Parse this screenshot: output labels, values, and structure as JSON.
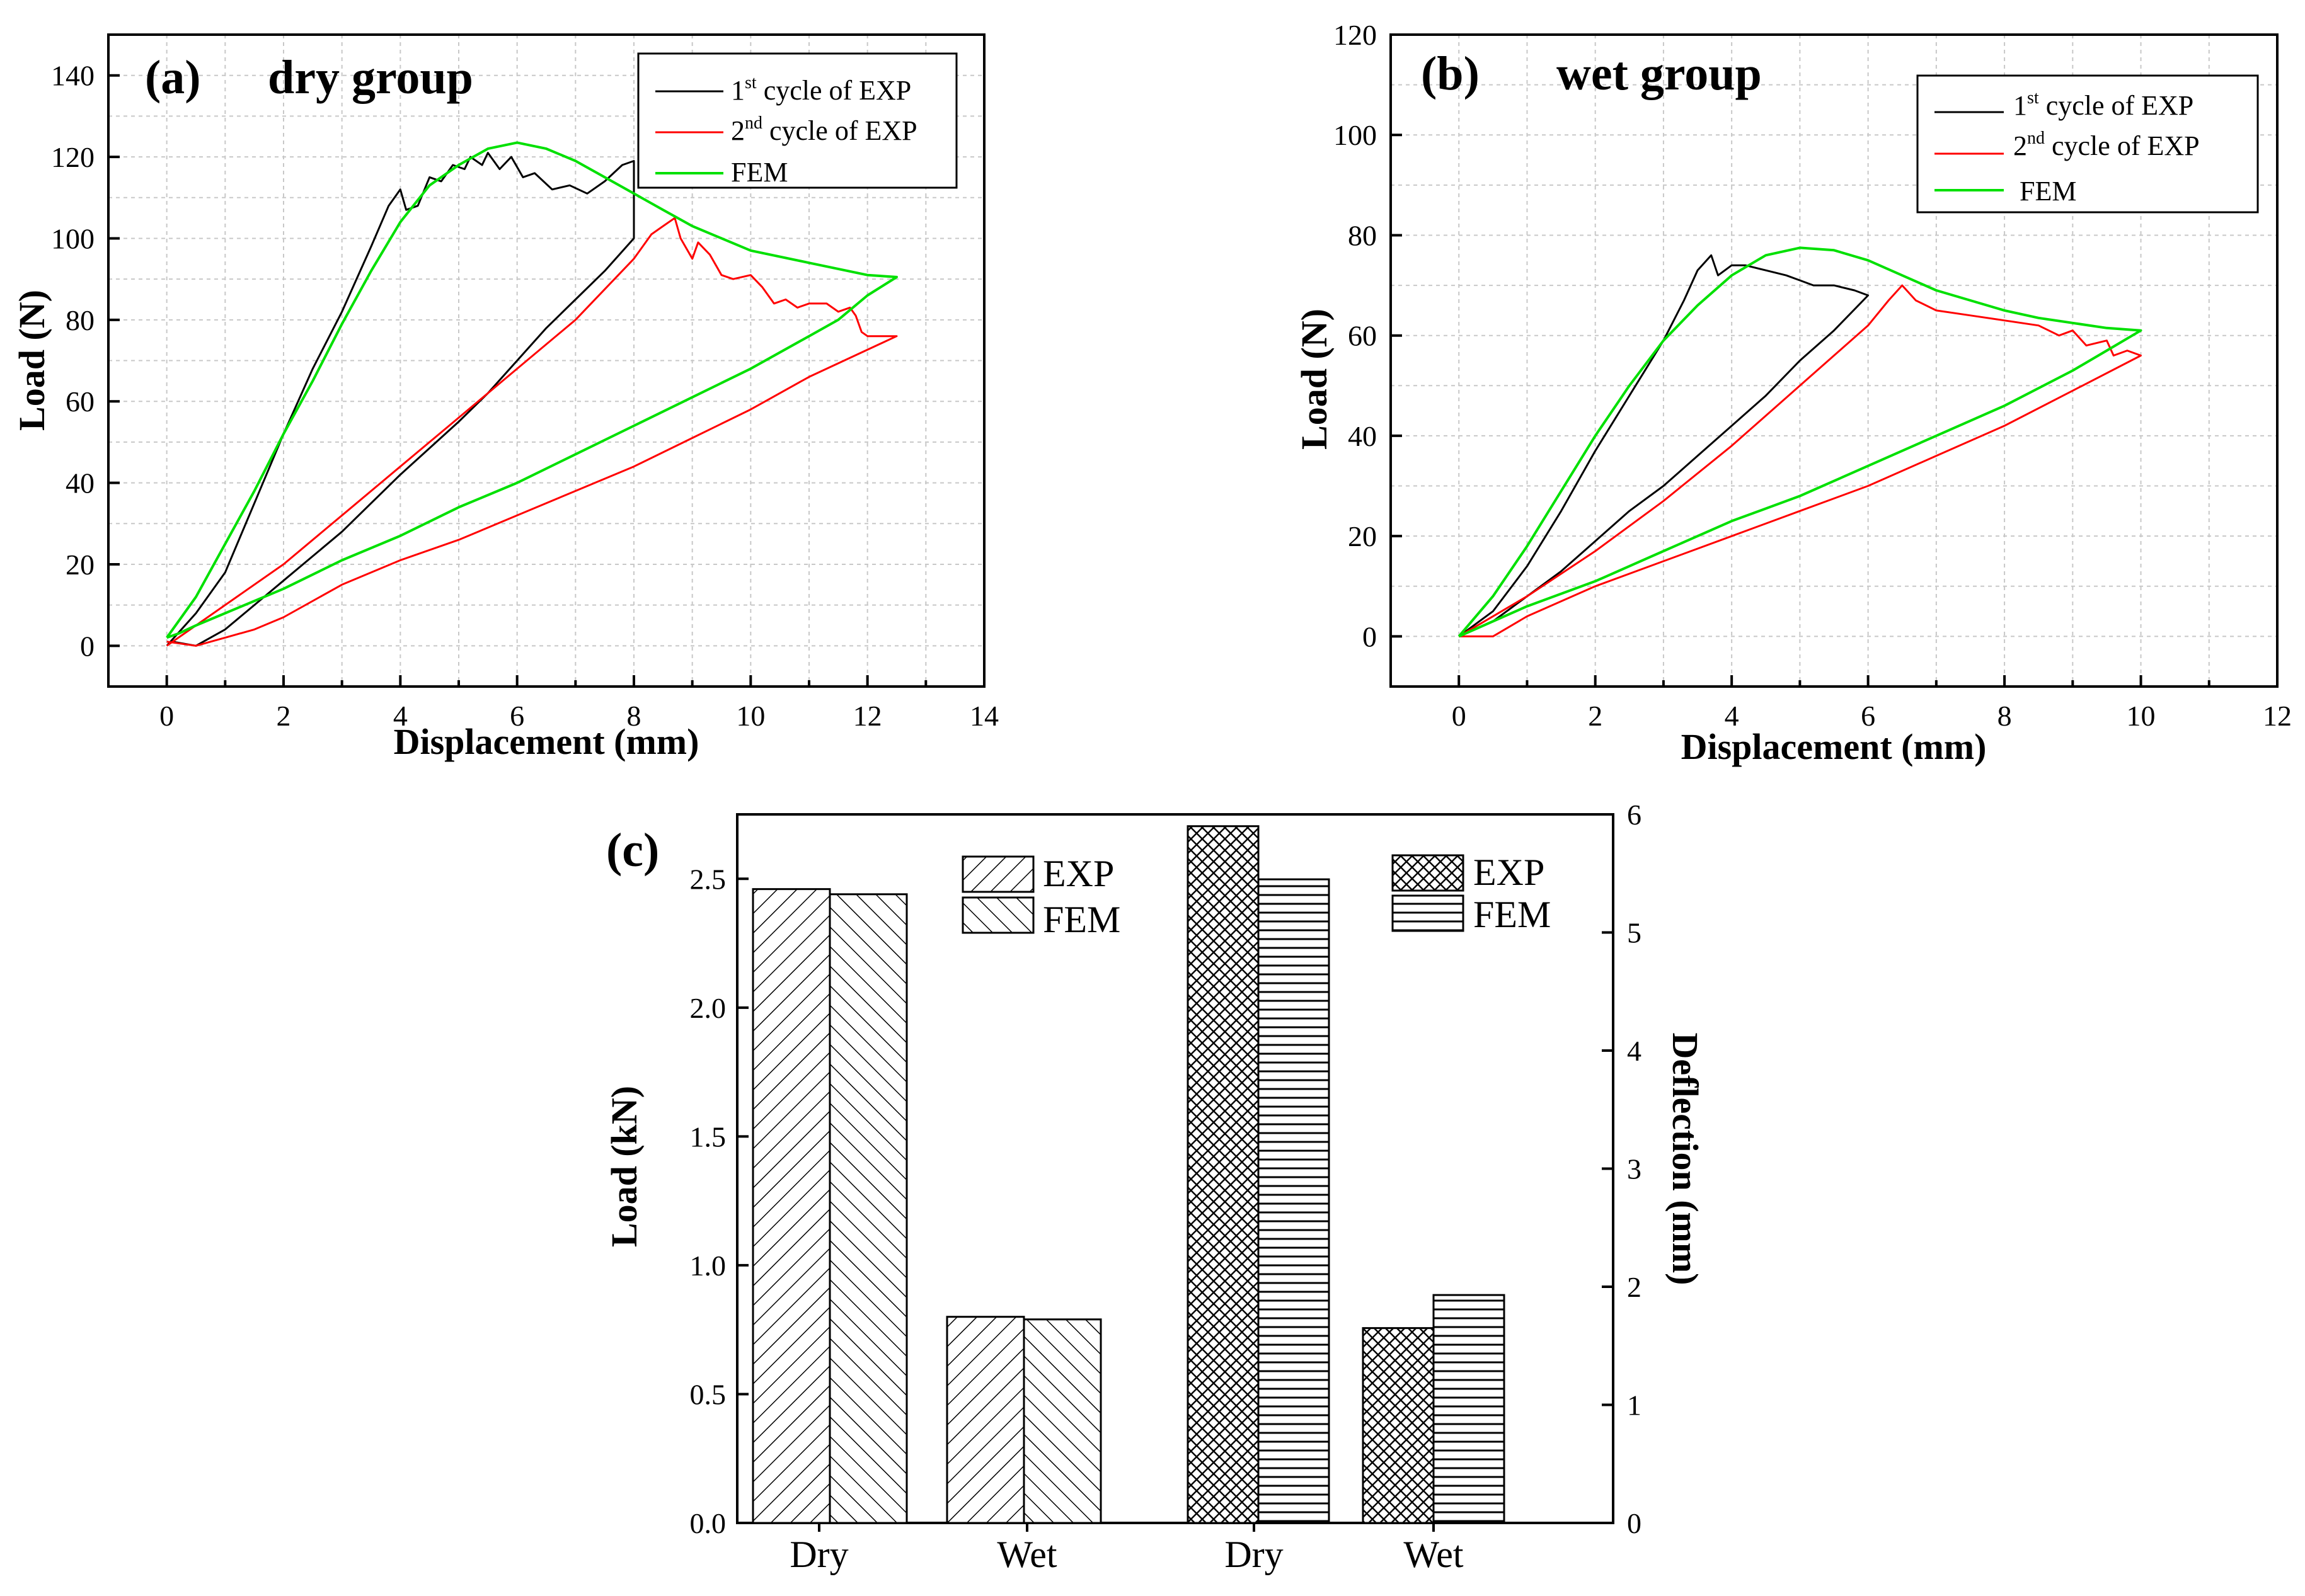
{
  "chart_data": [
    {
      "type": "line",
      "panel_label": "(a)",
      "title": "dry group",
      "xlabel": "Displacement (mm)",
      "ylabel": "Load (N)",
      "xlim": [
        -1,
        14
      ],
      "ylim": [
        -10,
        150
      ],
      "xticks": [
        "0",
        "2",
        "4",
        "6",
        "8",
        "10",
        "12",
        "14"
      ],
      "yticks": [
        "0",
        "20",
        "40",
        "60",
        "80",
        "100",
        "120",
        "140"
      ],
      "grid": true,
      "legend_position": "top-right",
      "legend": [
        {
          "pre": "1",
          "sup": "st",
          "post": " cycle of EXP"
        },
        {
          "pre": "2",
          "sup": "nd",
          "post": " cycle of EXP"
        },
        {
          "pre": "FEM",
          "sup": "",
          "post": ""
        }
      ],
      "series": [
        {
          "name": "1st cycle of EXP",
          "color": "#000000",
          "points": [
            [
              0,
              0
            ],
            [
              0.5,
              8
            ],
            [
              1,
              18
            ],
            [
              1.5,
              35
            ],
            [
              2,
              52
            ],
            [
              2.5,
              68
            ],
            [
              3,
              82
            ],
            [
              3.5,
              98
            ],
            [
              3.8,
              108
            ],
            [
              4,
              112
            ],
            [
              4.1,
              107
            ],
            [
              4.3,
              108
            ],
            [
              4.5,
              115
            ],
            [
              4.7,
              114
            ],
            [
              4.9,
              118
            ],
            [
              5.1,
              117
            ],
            [
              5.2,
              120
            ],
            [
              5.4,
              118
            ],
            [
              5.5,
              121
            ],
            [
              5.7,
              117
            ],
            [
              5.9,
              120
            ],
            [
              6.1,
              115
            ],
            [
              6.3,
              116
            ],
            [
              6.6,
              112
            ],
            [
              6.9,
              113
            ],
            [
              7.2,
              111
            ],
            [
              7.5,
              114
            ],
            [
              7.8,
              118
            ],
            [
              8.0,
              119
            ],
            [
              8.0,
              100
            ],
            [
              7.5,
              92
            ],
            [
              7,
              85
            ],
            [
              6.5,
              78
            ],
            [
              6,
              70
            ],
            [
              5.5,
              62
            ],
            [
              5,
              55
            ],
            [
              4,
              42
            ],
            [
              3,
              28
            ],
            [
              2,
              16
            ],
            [
              1.5,
              10
            ],
            [
              1,
              4
            ],
            [
              0.5,
              0
            ],
            [
              0.1,
              1
            ]
          ]
        },
        {
          "name": "2nd cycle of EXP",
          "color": "#ff0000",
          "points": [
            [
              0,
              0
            ],
            [
              1,
              10
            ],
            [
              2,
              20
            ],
            [
              3,
              32
            ],
            [
              4,
              44
            ],
            [
              5,
              56
            ],
            [
              6,
              68
            ],
            [
              7,
              80
            ],
            [
              8,
              95
            ],
            [
              8.3,
              101
            ],
            [
              8.5,
              103
            ],
            [
              8.7,
              105
            ],
            [
              8.8,
              100
            ],
            [
              9,
              95
            ],
            [
              9.1,
              99
            ],
            [
              9.3,
              96
            ],
            [
              9.5,
              91
            ],
            [
              9.7,
              90
            ],
            [
              10,
              91
            ],
            [
              10.2,
              88
            ],
            [
              10.4,
              84
            ],
            [
              10.6,
              85
            ],
            [
              10.8,
              83
            ],
            [
              11,
              84
            ],
            [
              11.3,
              84
            ],
            [
              11.5,
              82
            ],
            [
              11.7,
              83
            ],
            [
              11.8,
              81
            ],
            [
              11.9,
              77
            ],
            [
              12,
              76
            ],
            [
              12.5,
              76
            ],
            [
              11,
              66
            ],
            [
              10,
              58
            ],
            [
              9,
              51
            ],
            [
              8,
              44
            ],
            [
              7,
              38
            ],
            [
              6,
              32
            ],
            [
              5,
              26
            ],
            [
              4,
              21
            ],
            [
              3,
              15
            ],
            [
              2,
              7
            ],
            [
              1.5,
              4
            ],
            [
              1,
              2
            ],
            [
              0.5,
              0
            ],
            [
              0,
              1
            ]
          ]
        },
        {
          "name": "FEM",
          "color": "#00e000",
          "points": [
            [
              0,
              2
            ],
            [
              0.5,
              12
            ],
            [
              1,
              25
            ],
            [
              1.5,
              38
            ],
            [
              2,
              52
            ],
            [
              2.5,
              65
            ],
            [
              3,
              79
            ],
            [
              3.5,
              92
            ],
            [
              4,
              104
            ],
            [
              4.5,
              113
            ],
            [
              5,
              118
            ],
            [
              5.5,
              122
            ],
            [
              6,
              123.5
            ],
            [
              6.5,
              122
            ],
            [
              7,
              119
            ],
            [
              7.5,
              115
            ],
            [
              8,
              111
            ],
            [
              8.5,
              107
            ],
            [
              9,
              103
            ],
            [
              10,
              97
            ],
            [
              11,
              94
            ],
            [
              12,
              91
            ],
            [
              12.5,
              90.5
            ],
            [
              12,
              86
            ],
            [
              11.5,
              80
            ],
            [
              11,
              76
            ],
            [
              10,
              68
            ],
            [
              9,
              61
            ],
            [
              8,
              54
            ],
            [
              7,
              47
            ],
            [
              6,
              40
            ],
            [
              5,
              34
            ],
            [
              4,
              27
            ],
            [
              3,
              21
            ],
            [
              2,
              14
            ],
            [
              1,
              8
            ],
            [
              0.5,
              5
            ],
            [
              0.2,
              3
            ],
            [
              0,
              2
            ]
          ]
        }
      ]
    },
    {
      "type": "line",
      "panel_label": "(b)",
      "title": "wet group",
      "xlabel": "Displacement (mm)",
      "ylabel": "Load (N)",
      "xlim": [
        -1,
        12
      ],
      "ylim": [
        -10,
        120
      ],
      "xticks": [
        "0",
        "2",
        "4",
        "6",
        "8",
        "10",
        "12"
      ],
      "yticks": [
        "0",
        "20",
        "40",
        "60",
        "80",
        "100",
        "120"
      ],
      "grid": true,
      "legend_position": "top-right",
      "legend": [
        {
          "pre": "1",
          "sup": "st",
          "post": " cycle of EXP"
        },
        {
          "pre": "2",
          "sup": "nd",
          "post": " cycle of EXP"
        },
        {
          "pre": "FEM",
          "sup": "",
          "post": ""
        }
      ],
      "series": [
        {
          "name": "1st cycle of EXP",
          "color": "#000000",
          "points": [
            [
              0,
              0
            ],
            [
              0.5,
              5
            ],
            [
              1,
              14
            ],
            [
              1.5,
              25
            ],
            [
              2,
              37
            ],
            [
              2.5,
              48
            ],
            [
              3,
              59
            ],
            [
              3.3,
              67
            ],
            [
              3.5,
              73
            ],
            [
              3.7,
              76
            ],
            [
              3.8,
              72
            ],
            [
              4,
              74
            ],
            [
              4.2,
              74
            ],
            [
              4.5,
              73
            ],
            [
              4.8,
              72
            ],
            [
              5,
              71
            ],
            [
              5.2,
              70
            ],
            [
              5.5,
              70
            ],
            [
              5.8,
              69
            ],
            [
              6,
              68
            ],
            [
              5.5,
              61
            ],
            [
              5,
              55
            ],
            [
              4.5,
              48
            ],
            [
              4,
              42
            ],
            [
              3.5,
              36
            ],
            [
              3,
              30
            ],
            [
              2.5,
              25
            ],
            [
              2,
              19
            ],
            [
              1.5,
              13
            ],
            [
              1,
              8
            ],
            [
              0.5,
              3
            ],
            [
              0,
              0
            ]
          ]
        },
        {
          "name": "2nd cycle of EXP",
          "color": "#ff0000",
          "points": [
            [
              0,
              0
            ],
            [
              1,
              8
            ],
            [
              2,
              17
            ],
            [
              3,
              27
            ],
            [
              4,
              38
            ],
            [
              5,
              50
            ],
            [
              5.5,
              56
            ],
            [
              6,
              62
            ],
            [
              6.3,
              67
            ],
            [
              6.5,
              70
            ],
            [
              6.7,
              67
            ],
            [
              7,
              65
            ],
            [
              7.5,
              64
            ],
            [
              8,
              63
            ],
            [
              8.5,
              62
            ],
            [
              8.8,
              60
            ],
            [
              9,
              61
            ],
            [
              9.2,
              58
            ],
            [
              9.5,
              59
            ],
            [
              9.6,
              56
            ],
            [
              9.8,
              57
            ],
            [
              10,
              56
            ],
            [
              9,
              49
            ],
            [
              8,
              42
            ],
            [
              7,
              36
            ],
            [
              6,
              30
            ],
            [
              5,
              25
            ],
            [
              4,
              20
            ],
            [
              3,
              15
            ],
            [
              2,
              10
            ],
            [
              1,
              4
            ],
            [
              0.5,
              0
            ],
            [
              0,
              0
            ]
          ]
        },
        {
          "name": "FEM",
          "color": "#00e000",
          "points": [
            [
              0,
              0
            ],
            [
              0.5,
              8
            ],
            [
              1,
              18
            ],
            [
              1.5,
              29
            ],
            [
              2,
              40
            ],
            [
              2.5,
              50
            ],
            [
              3,
              59
            ],
            [
              3.5,
              66
            ],
            [
              4,
              72
            ],
            [
              4.5,
              76
            ],
            [
              5,
              77.5
            ],
            [
              5.5,
              77
            ],
            [
              6,
              75
            ],
            [
              6.5,
              72
            ],
            [
              7,
              69
            ],
            [
              7.5,
              67
            ],
            [
              8,
              65
            ],
            [
              8.5,
              63.5
            ],
            [
              9,
              62.5
            ],
            [
              9.5,
              61.5
            ],
            [
              10,
              61
            ],
            [
              9.5,
              57
            ],
            [
              9,
              53
            ],
            [
              8,
              46
            ],
            [
              7,
              40
            ],
            [
              6,
              34
            ],
            [
              5,
              28
            ],
            [
              4,
              23
            ],
            [
              3,
              17
            ],
            [
              2,
              11
            ],
            [
              1,
              6
            ],
            [
              0.5,
              3
            ],
            [
              0,
              0
            ]
          ]
        }
      ]
    },
    {
      "type": "bar",
      "panel_label": "(c)",
      "categories": [
        "Dry",
        "Wet",
        "Dry",
        "Wet"
      ],
      "ylabel_left": "Load (kN)",
      "ylabel_right": "Deflection (mm)",
      "ylim_left": [
        0,
        2.75
      ],
      "ylim_right": [
        0,
        6
      ],
      "yticks_left": [
        "0.0",
        "0.5",
        "1.0",
        "1.5",
        "2.0",
        "2.5"
      ],
      "yticks_right": [
        "0",
        "1",
        "2",
        "3",
        "4",
        "5",
        "6"
      ],
      "legend_left": [
        "EXP",
        "FEM"
      ],
      "legend_right": [
        "EXP",
        "FEM"
      ],
      "groups": [
        {
          "category": "Dry",
          "axis": "left",
          "exp": 2.46,
          "fem": 2.44
        },
        {
          "category": "Wet",
          "axis": "left",
          "exp": 0.8,
          "fem": 0.79
        },
        {
          "category": "Dry",
          "axis": "right",
          "exp": 5.9,
          "fem": 5.45
        },
        {
          "category": "Wet",
          "axis": "right",
          "exp": 1.65,
          "fem": 1.93
        }
      ]
    }
  ]
}
